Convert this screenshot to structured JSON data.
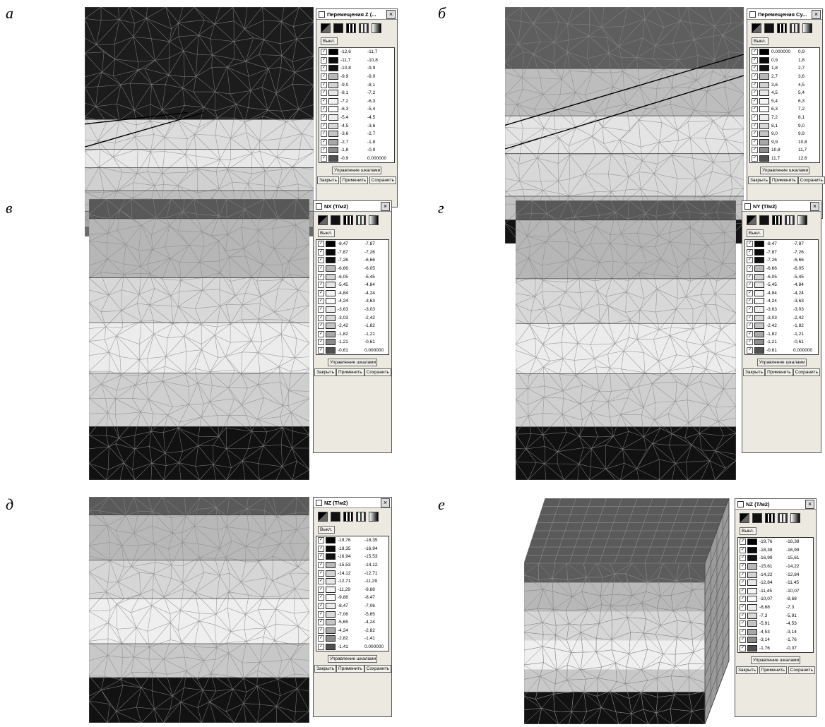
{
  "panels": [
    {
      "label": "а",
      "title": "Перемещения Z (...",
      "off_button": "Выкл.",
      "scale_button": "Управление шкалами",
      "buttons": [
        "Закрыть",
        "Применить",
        "Сохранить"
      ],
      "rows": [
        [
          "-12,6",
          "-11,7"
        ],
        [
          "-11,7",
          "-10,8"
        ],
        [
          "-10,8",
          "-9,9"
        ],
        [
          "-9,9",
          "-9,0"
        ],
        [
          "-9,0",
          "-8,1"
        ],
        [
          "-8,1",
          "-7,2"
        ],
        [
          "-7,2",
          "-6,3"
        ],
        [
          "-6,3",
          "-5,4"
        ],
        [
          "-5,4",
          "-4,5"
        ],
        [
          "-4,5",
          "-3,6"
        ],
        [
          "-3,6",
          "-2,7"
        ],
        [
          "-2,7",
          "-1,8"
        ],
        [
          "-1,8",
          "-0,9"
        ],
        [
          "-0,9",
          "0.000000"
        ]
      ]
    },
    {
      "label": "б",
      "title": "Перемещения Cy...",
      "off_button": "Выкл.",
      "scale_button": "Управление шкалами",
      "buttons": [
        "Закрыть",
        "Применить",
        "Сохранить"
      ],
      "rows": [
        [
          "0.000000",
          "0,9"
        ],
        [
          "0,9",
          "1,8"
        ],
        [
          "1,8",
          "2,7"
        ],
        [
          "2,7",
          "3,6"
        ],
        [
          "3,6",
          "4,5"
        ],
        [
          "4,5",
          "5,4"
        ],
        [
          "5,4",
          "6,3"
        ],
        [
          "6,3",
          "7,2"
        ],
        [
          "7,2",
          "8,1"
        ],
        [
          "8,1",
          "9,0"
        ],
        [
          "9,0",
          "9,9"
        ],
        [
          "9,9",
          "10,8"
        ],
        [
          "10,8",
          "11,7"
        ],
        [
          "11,7",
          "12,6"
        ]
      ]
    },
    {
      "label": "в",
      "title": "NX (Т/м2)",
      "off_button": "Выкл.",
      "scale_button": "Управление шкалами",
      "buttons": [
        "Закрыть",
        "Применить",
        "Сохранить"
      ],
      "rows": [
        [
          "-8,47",
          "-7,87"
        ],
        [
          "-7,87",
          "-7,26"
        ],
        [
          "-7,26",
          "-6,66"
        ],
        [
          "-6,66",
          "-6,05"
        ],
        [
          "-6,05",
          "-5,45"
        ],
        [
          "-5,45",
          "-4,84"
        ],
        [
          "-4,84",
          "-4,24"
        ],
        [
          "-4,24",
          "-3,63"
        ],
        [
          "-3,63",
          "-3,03"
        ],
        [
          "-3,03",
          "-2,42"
        ],
        [
          "-2,42",
          "-1,82"
        ],
        [
          "-1,82",
          "-1,21"
        ],
        [
          "-1,21",
          "-0,61"
        ],
        [
          "-0,61",
          "0.000000"
        ]
      ]
    },
    {
      "label": "г",
      "title": "NY (Т/м2)",
      "off_button": "Выкл.",
      "scale_button": "Управление шкалами",
      "buttons": [
        "Закрыть",
        "Применить",
        "Сохранить"
      ],
      "rows": [
        [
          "-8,47",
          "-7,87"
        ],
        [
          "-7,87",
          "-7,26"
        ],
        [
          "-7,26",
          "-6,66"
        ],
        [
          "-6,66",
          "-6,05"
        ],
        [
          "-6,05",
          "-5,45"
        ],
        [
          "-5,45",
          "-4,84"
        ],
        [
          "-4,84",
          "-4,24"
        ],
        [
          "-4,24",
          "-3,63"
        ],
        [
          "-3,63",
          "-3,03"
        ],
        [
          "-3,03",
          "-2,42"
        ],
        [
          "-2,42",
          "-1,82"
        ],
        [
          "-1,82",
          "-1,21"
        ],
        [
          "-1,21",
          "-0,61"
        ],
        [
          "-0,61",
          "0.000000"
        ]
      ]
    },
    {
      "label": "д",
      "title": "NZ (Т/м2)",
      "off_button": "Выкл.",
      "scale_button": "Управление шкалами",
      "buttons": [
        "Закрыть",
        "Применить",
        "Сохранить"
      ],
      "rows": [
        [
          "-19,76",
          "-18,35"
        ],
        [
          "-18,35",
          "-16,94"
        ],
        [
          "-16,94",
          "-15,53"
        ],
        [
          "-15,53",
          "-14,12"
        ],
        [
          "-14,12",
          "-12,71"
        ],
        [
          "-12,71",
          "-11,29"
        ],
        [
          "-11,29",
          "-9,88"
        ],
        [
          "-9,88",
          "-8,47"
        ],
        [
          "-8,47",
          "-7,06"
        ],
        [
          "-7,06",
          "-5,65"
        ],
        [
          "-5,65",
          "-4,24"
        ],
        [
          "-4,24",
          "-2,82"
        ],
        [
          "-2,82",
          "-1,41"
        ],
        [
          "-1,41",
          "0.000000"
        ]
      ]
    },
    {
      "label": "е",
      "title": "NZ (Т/м2)",
      "off_button": "Выкл.",
      "scale_button": "Управление шкалами",
      "buttons": [
        "Закрыть",
        "Применить",
        "Сохранить"
      ],
      "rows": [
        [
          "-19,76",
          "-18,38"
        ],
        [
          "-18,38",
          "-16,99"
        ],
        [
          "-16,99",
          "-15,61"
        ],
        [
          "-15,61",
          "-14,22"
        ],
        [
          "-14,22",
          "-12,84"
        ],
        [
          "-12,84",
          "-11,45"
        ],
        [
          "-11,45",
          "-10,07"
        ],
        [
          "-10,07",
          "-8,68"
        ],
        [
          "-8,68",
          "-7,3"
        ],
        [
          "-7,3",
          "-5,91"
        ],
        [
          "-5,91",
          "-4,53"
        ],
        [
          "-4,53",
          "-3,14"
        ],
        [
          "-3,14",
          "-1,76"
        ],
        [
          "-1,76",
          "-0,37"
        ]
      ]
    }
  ],
  "swatch_colors": [
    "#000000",
    "#0a0a0a",
    "#111111",
    "#b8b8b8",
    "#d2d2d2",
    "#e6e6e6",
    "#f4f4f4",
    "#fafafa",
    "#ececec",
    "#d8d8d8",
    "#c4c4c4",
    "#a8a8a8",
    "#8c8c8c",
    "#505050"
  ]
}
